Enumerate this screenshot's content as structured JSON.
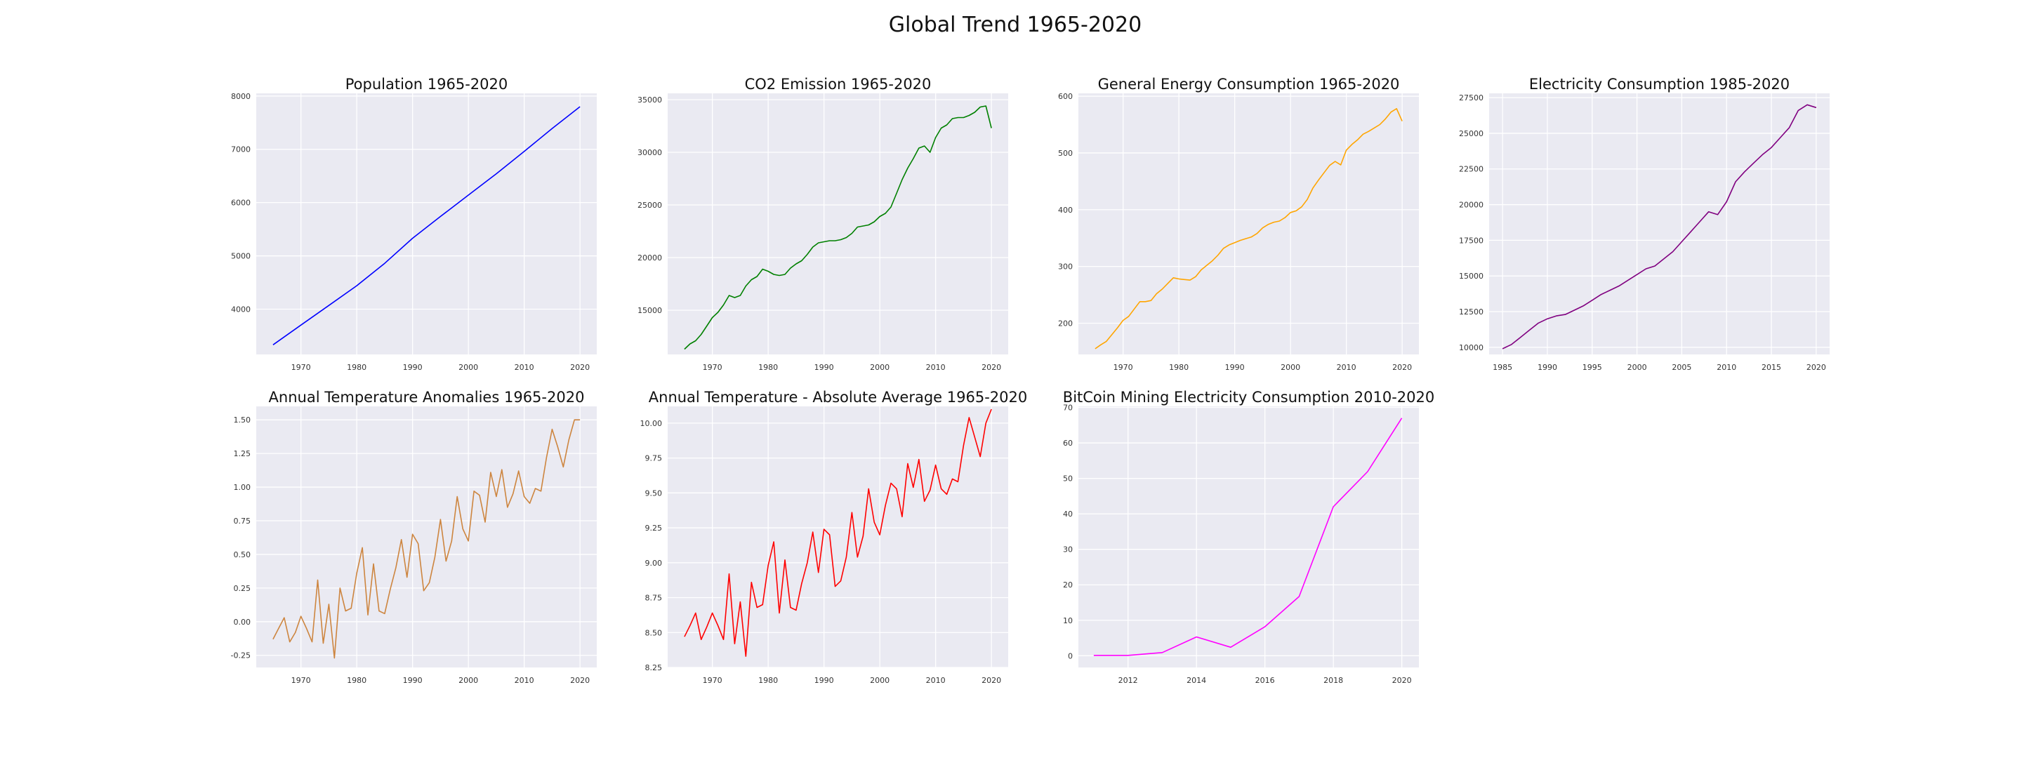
{
  "figure": {
    "title": "Global Trend 1965-2020"
  },
  "chart_data": [
    {
      "type": "line",
      "title": "Population 1965-2020",
      "xlabel": "",
      "ylabel": "",
      "color": "#0000ff",
      "xlim": [
        1962,
        2023
      ],
      "ylim": [
        3150,
        8050
      ],
      "xticks": [
        1970,
        1980,
        1990,
        2000,
        2010,
        2020
      ],
      "yticks": [
        4000,
        5000,
        6000,
        7000,
        8000
      ],
      "grid": true,
      "x": [
        1965,
        1970,
        1975,
        1980,
        1985,
        1990,
        1995,
        2000,
        2005,
        2010,
        2015,
        2020
      ],
      "y": [
        3330,
        3700,
        4070,
        4440,
        4860,
        5330,
        5740,
        6140,
        6540,
        6960,
        7390,
        7800
      ]
    },
    {
      "type": "line",
      "title": "CO2 Emission 1965-2020",
      "xlabel": "",
      "ylabel": "",
      "color": "#008000",
      "xlim": [
        1962,
        2023
      ],
      "ylim": [
        10800,
        35600
      ],
      "xticks": [
        1970,
        1980,
        1990,
        2000,
        2010,
        2020
      ],
      "yticks": [
        15000,
        20000,
        25000,
        30000,
        35000
      ],
      "grid": true,
      "x": [
        1965,
        1966,
        1967,
        1968,
        1969,
        1970,
        1971,
        1972,
        1973,
        1974,
        1975,
        1976,
        1977,
        1978,
        1979,
        1980,
        1981,
        1982,
        1983,
        1984,
        1985,
        1986,
        1987,
        1988,
        1989,
        1990,
        1991,
        1992,
        1993,
        1994,
        1995,
        1996,
        1997,
        1998,
        1999,
        2000,
        2001,
        2002,
        2003,
        2004,
        2005,
        2006,
        2007,
        2008,
        2009,
        2010,
        2011,
        2012,
        2013,
        2014,
        2015,
        2016,
        2017,
        2018,
        2019,
        2020
      ],
      "y": [
        11300,
        11800,
        12100,
        12700,
        13500,
        14300,
        14800,
        15500,
        16400,
        16200,
        16400,
        17300,
        17900,
        18200,
        18900,
        18700,
        18400,
        18300,
        18400,
        19000,
        19400,
        19700,
        20300,
        21000,
        21400,
        21500,
        21600,
        21600,
        21700,
        21900,
        22300,
        22900,
        23000,
        23100,
        23400,
        23900,
        24200,
        24800,
        26100,
        27400,
        28500,
        29400,
        30400,
        30600,
        30000,
        31400,
        32300,
        32600,
        33200,
        33300,
        33300,
        33500,
        33800,
        34300,
        34400,
        32300
      ]
    },
    {
      "type": "line",
      "title": "General Energy Consumption 1965-2020",
      "xlabel": "",
      "ylabel": "",
      "color": "#ffa500",
      "xlim": [
        1962,
        2023
      ],
      "ylim": [
        145,
        605
      ],
      "xticks": [
        1970,
        1980,
        1990,
        2000,
        2010,
        2020
      ],
      "yticks": [
        200,
        300,
        400,
        500,
        600
      ],
      "grid": true,
      "x": [
        1965,
        1966,
        1967,
        1968,
        1969,
        1970,
        1971,
        1972,
        1973,
        1974,
        1975,
        1976,
        1977,
        1978,
        1979,
        1980,
        1981,
        1982,
        1983,
        1984,
        1985,
        1986,
        1987,
        1988,
        1989,
        1990,
        1991,
        1992,
        1993,
        1994,
        1995,
        1996,
        1997,
        1998,
        1999,
        2000,
        2001,
        2002,
        2003,
        2004,
        2005,
        2006,
        2007,
        2008,
        2009,
        2010,
        2011,
        2012,
        2013,
        2014,
        2015,
        2016,
        2017,
        2018,
        2019,
        2020
      ],
      "y": [
        155,
        162,
        168,
        180,
        192,
        205,
        212,
        225,
        238,
        238,
        240,
        252,
        260,
        270,
        280,
        278,
        277,
        276,
        282,
        294,
        302,
        310,
        320,
        332,
        338,
        342,
        346,
        349,
        352,
        358,
        368,
        374,
        378,
        380,
        386,
        395,
        398,
        405,
        418,
        438,
        452,
        465,
        478,
        485,
        479,
        505,
        515,
        523,
        533,
        538,
        544,
        550,
        560,
        572,
        578,
        556
      ]
    },
    {
      "type": "line",
      "title": "Electricity Consumption 1985-2020",
      "xlabel": "",
      "ylabel": "",
      "color": "#800080",
      "xlim": [
        1983.5,
        2021.5
      ],
      "ylim": [
        9500,
        27800
      ],
      "xticks": [
        1985,
        1990,
        1995,
        2000,
        2005,
        2010,
        2015,
        2020
      ],
      "yticks": [
        10000,
        12500,
        15000,
        17500,
        20000,
        22500,
        25000,
        27500
      ],
      "grid": true,
      "x": [
        1985,
        1986,
        1987,
        1988,
        1989,
        1990,
        1991,
        1992,
        1993,
        1994,
        1995,
        1996,
        1997,
        1998,
        1999,
        2000,
        2001,
        2002,
        2003,
        2004,
        2005,
        2006,
        2007,
        2008,
        2009,
        2010,
        2011,
        2012,
        2013,
        2014,
        2015,
        2016,
        2017,
        2018,
        2019,
        2020
      ],
      "y": [
        9900,
        10200,
        10700,
        11200,
        11700,
        12000,
        12200,
        12300,
        12600,
        12900,
        13300,
        13700,
        14000,
        14300,
        14700,
        15100,
        15500,
        15700,
        16200,
        16700,
        17400,
        18100,
        18800,
        19500,
        19300,
        20200,
        21600,
        22300,
        22900,
        23500,
        24000,
        24700,
        25400,
        26600,
        27000,
        26800
      ]
    },
    {
      "type": "line",
      "title": "Annual Temperature Anomalies 1965-2020",
      "xlabel": "",
      "ylabel": "",
      "color": "#cd853f",
      "xlim": [
        1962,
        2023
      ],
      "ylim": [
        -0.34,
        1.6
      ],
      "xticks": [
        1970,
        1980,
        1990,
        2000,
        2010,
        2020
      ],
      "yticks": [
        -0.25,
        0.0,
        0.25,
        0.5,
        0.75,
        1.0,
        1.25,
        1.5
      ],
      "grid": true,
      "x": [
        1965,
        1966,
        1967,
        1968,
        1969,
        1970,
        1971,
        1972,
        1973,
        1974,
        1975,
        1976,
        1977,
        1978,
        1979,
        1980,
        1981,
        1982,
        1983,
        1984,
        1985,
        1986,
        1987,
        1988,
        1989,
        1990,
        1991,
        1992,
        1993,
        1994,
        1995,
        1996,
        1997,
        1998,
        1999,
        2000,
        2001,
        2002,
        2003,
        2004,
        2005,
        2006,
        2007,
        2008,
        2009,
        2010,
        2011,
        2012,
        2013,
        2014,
        2015,
        2016,
        2017,
        2018,
        2019,
        2020
      ],
      "y": [
        -0.13,
        -0.05,
        0.03,
        -0.15,
        -0.08,
        0.04,
        -0.05,
        -0.15,
        0.31,
        -0.16,
        0.13,
        -0.27,
        0.25,
        0.08,
        0.1,
        0.36,
        0.55,
        0.05,
        0.43,
        0.08,
        0.06,
        0.24,
        0.4,
        0.61,
        0.33,
        0.65,
        0.58,
        0.23,
        0.29,
        0.48,
        0.76,
        0.45,
        0.6,
        0.93,
        0.69,
        0.6,
        0.97,
        0.94,
        0.74,
        1.11,
        0.93,
        1.13,
        0.85,
        0.95,
        1.12,
        0.93,
        0.88,
        0.99,
        0.97,
        1.22,
        1.43,
        1.3,
        1.15,
        1.35,
        1.5,
        1.5
      ]
    },
    {
      "type": "line",
      "title": "Annual Temperature - Absolute Average 1965-2020",
      "xlabel": "",
      "ylabel": "",
      "color": "#ff0000",
      "xlim": [
        1962,
        2023
      ],
      "ylim": [
        8.25,
        10.12
      ],
      "xticks": [
        1970,
        1980,
        1990,
        2000,
        2010,
        2020
      ],
      "yticks": [
        8.25,
        8.5,
        8.75,
        9.0,
        9.25,
        9.5,
        9.75,
        10.0
      ],
      "grid": true,
      "x": [
        1965,
        1966,
        1967,
        1968,
        1969,
        1970,
        1971,
        1972,
        1973,
        1974,
        1975,
        1976,
        1977,
        1978,
        1979,
        1980,
        1981,
        1982,
        1983,
        1984,
        1985,
        1986,
        1987,
        1988,
        1989,
        1990,
        1991,
        1992,
        1993,
        1994,
        1995,
        1996,
        1997,
        1998,
        1999,
        2000,
        2001,
        2002,
        2003,
        2004,
        2005,
        2006,
        2007,
        2008,
        2009,
        2010,
        2011,
        2012,
        2013,
        2014,
        2015,
        2016,
        2017,
        2018,
        2019,
        2020
      ],
      "y": [
        8.47,
        8.55,
        8.64,
        8.45,
        8.54,
        8.64,
        8.55,
        8.45,
        8.92,
        8.42,
        8.72,
        8.33,
        8.86,
        8.68,
        8.7,
        8.98,
        9.15,
        8.64,
        9.02,
        8.68,
        8.66,
        8.85,
        9.0,
        9.22,
        8.93,
        9.24,
        9.2,
        8.83,
        8.87,
        9.04,
        9.36,
        9.04,
        9.19,
        9.53,
        9.29,
        9.2,
        9.41,
        9.57,
        9.53,
        9.33,
        9.71,
        9.54,
        9.74,
        9.44,
        9.52,
        9.7,
        9.53,
        9.49,
        9.6,
        9.58,
        9.84,
        10.04,
        9.9,
        9.76,
        10.0,
        10.1
      ]
    },
    {
      "type": "line",
      "title": "BitCoin Mining Electricity Consumption 2010-2020",
      "xlabel": "",
      "ylabel": "",
      "color": "#ff00ff",
      "xlim": [
        2010.55,
        2020.5
      ],
      "ylim": [
        -3.3,
        70.3
      ],
      "xticks": [
        2012,
        2014,
        2016,
        2018,
        2020
      ],
      "yticks": [
        0,
        10,
        20,
        30,
        40,
        50,
        60,
        70
      ],
      "grid": true,
      "x": [
        2011,
        2012,
        2013,
        2014,
        2015,
        2016,
        2017,
        2018,
        2019,
        2020
      ],
      "y": [
        0.1,
        0.1,
        0.9,
        5.3,
        2.4,
        8.2,
        16.7,
        42.0,
        51.9,
        67.0
      ]
    }
  ]
}
